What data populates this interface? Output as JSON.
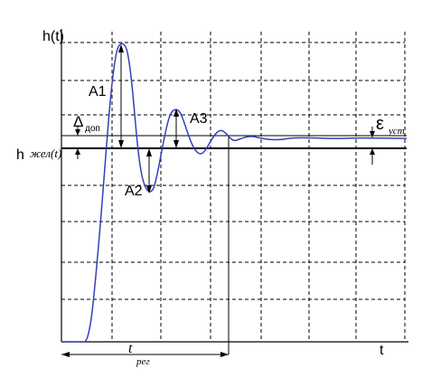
{
  "labels": {
    "y_axis": "h(t)",
    "x_axis": "t",
    "h_main": "h",
    "h_sub": "жел(t)",
    "a1": "A1",
    "a2": "A2",
    "a3": "A3",
    "delta_main": "Δ",
    "delta_sub": "доп",
    "eps_main": "ε",
    "eps_sub": "уст",
    "treg_main": "t",
    "treg_sub": "рег"
  },
  "colors": {
    "curve": "#3340b8",
    "axes": "#000000",
    "grid": "#000000"
  }
}
